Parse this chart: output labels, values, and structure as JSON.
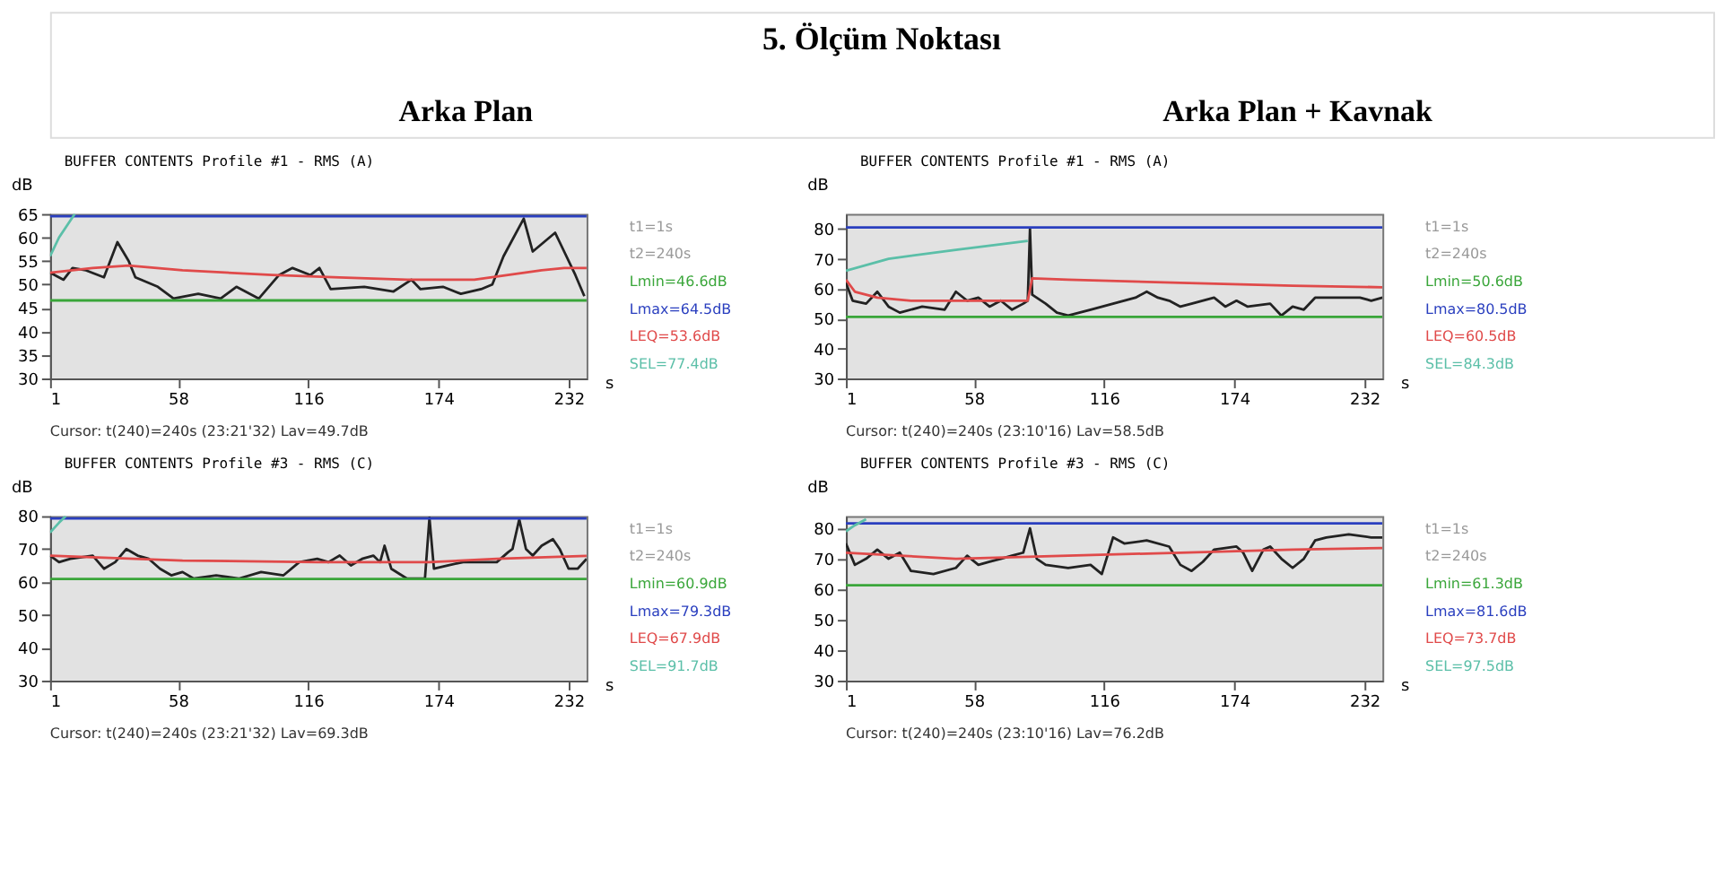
{
  "chart_data": [
    {
      "type": "other",
      "title": "5. Ölçüm Noktası",
      "annotations": [
        "Arka Plan",
        "Arka Plan + Kavnak"
      ]
    },
    {
      "type": "line",
      "title": "BUFFER CONTENTS  Profile #1 - RMS (A)",
      "ylabel": "dB",
      "xlabel": "s",
      "xlim": [
        1,
        240
      ],
      "xticks": [
        1,
        58,
        116,
        174,
        232
      ],
      "ylim": [
        30,
        65
      ],
      "yticks": [
        30,
        35,
        40,
        45,
        50,
        55,
        60,
        65
      ],
      "grid": false,
      "legend": "right",
      "annotations": [
        "t1=1s",
        "t2=240s",
        "Cursor:  t(240)=240s (23:21'32)  Lav=49.7dB"
      ],
      "series": [
        {
          "color": "#222222",
          "x": [
            1,
            7,
            11,
            17,
            25,
            31,
            36,
            39,
            49,
            56,
            67,
            77,
            84,
            94,
            103,
            109,
            117,
            121,
            126,
            141,
            154,
            162,
            166,
            176,
            184,
            193,
            198,
            203,
            212,
            216,
            221,
            226,
            228,
            235,
            239
          ],
          "values": [
            52.5,
            51,
            53.5,
            53,
            51.5,
            59,
            55,
            51.5,
            49.5,
            47,
            48,
            47,
            49.5,
            47,
            52,
            53.5,
            52,
            53.5,
            49,
            49.5,
            48.5,
            51,
            49,
            49.5,
            48,
            49,
            50,
            56,
            64,
            57,
            59,
            61,
            59,
            52,
            47.5
          ]
        },
        {
          "name": "Lmin=46.6dB",
          "color": "#3aa63a",
          "x": [
            1,
            240
          ],
          "values": [
            46.6,
            46.6
          ]
        },
        {
          "name": "Lmax=64.5dB",
          "color": "#2a3fbf",
          "x": [
            1,
            240
          ],
          "values": [
            64.5,
            64.5
          ]
        },
        {
          "name": "LEQ=53.6dB",
          "color": "#e04a4a",
          "x": [
            1,
            20,
            36,
            60,
            100,
            130,
            160,
            190,
            205,
            220,
            230,
            240
          ],
          "values": [
            52.5,
            53.5,
            54,
            53,
            52,
            51.5,
            51,
            51,
            52,
            53,
            53.5,
            53.5
          ]
        },
        {
          "name": "SEL=77.4dB",
          "color": "#5bbfa8",
          "x": [
            1,
            5,
            12
          ],
          "values": [
            56,
            60,
            65
          ]
        }
      ]
    },
    {
      "type": "line",
      "title": "BUFFER CONTENTS  Profile #1 - RMS (A)",
      "ylabel": "dB",
      "xlabel": "s",
      "xlim": [
        1,
        240
      ],
      "xticks": [
        1,
        58,
        116,
        174,
        232
      ],
      "ylim": [
        30,
        85
      ],
      "yticks": [
        30,
        40,
        50,
        60,
        70,
        80
      ],
      "grid": false,
      "legend": "right",
      "annotations": [
        "t1=1s",
        "t2=240s",
        "Cursor:  t(240)=240s (23:10'16)  Lav=58.5dB"
      ],
      "series": [
        {
          "color": "#222222",
          "x": [
            1,
            4,
            10,
            15,
            20,
            25,
            35,
            45,
            50,
            55,
            60,
            65,
            70,
            75,
            80,
            82,
            83,
            84,
            90,
            95,
            100,
            110,
            120,
            130,
            135,
            140,
            145,
            150,
            155,
            165,
            170,
            175,
            180,
            190,
            195,
            200,
            205,
            210,
            215,
            220,
            230,
            235,
            240
          ],
          "values": [
            62,
            56,
            55,
            59,
            54,
            52,
            54,
            53,
            59,
            56,
            57,
            54,
            56,
            53,
            55,
            56,
            80,
            58,
            55,
            52,
            51,
            53,
            55,
            57,
            59,
            57,
            56,
            54,
            55,
            57,
            54,
            56,
            54,
            55,
            51,
            54,
            53,
            57,
            57,
            57,
            57,
            56,
            57
          ]
        },
        {
          "name": "Lmin=50.6dB",
          "color": "#3aa63a",
          "x": [
            1,
            240
          ],
          "values": [
            50.6,
            50.6
          ]
        },
        {
          "name": "Lmax=80.5dB",
          "color": "#2a3fbf",
          "x": [
            1,
            240
          ],
          "values": [
            80.5,
            80.5
          ]
        },
        {
          "name": "LEQ=60.5dB",
          "color": "#e04a4a",
          "x": [
            1,
            5,
            15,
            30,
            50,
            82,
            84,
            100,
            150,
            200,
            240
          ],
          "values": [
            63,
            59,
            57,
            56,
            56,
            56,
            63.5,
            63,
            62,
            61,
            60.5
          ]
        },
        {
          "name": "SEL=84.3dB",
          "color": "#5bbfa8",
          "x": [
            1,
            20,
            50,
            82
          ],
          "values": [
            66,
            70,
            73,
            76
          ]
        }
      ]
    },
    {
      "type": "line",
      "title": "BUFFER CONTENTS  Profile #3 - RMS (C)",
      "ylabel": "dB",
      "xlabel": "s",
      "xlim": [
        1,
        240
      ],
      "xticks": [
        1,
        58,
        116,
        174,
        232
      ],
      "ylim": [
        30,
        80
      ],
      "yticks": [
        30,
        40,
        50,
        60,
        70,
        80
      ],
      "grid": false,
      "legend": "right",
      "annotations": [
        "t1=1s",
        "t2=240s",
        "Cursor:  t(240)=240s (23:21'32)  Lav=69.3dB"
      ],
      "series": [
        {
          "color": "#222222",
          "x": [
            1,
            5,
            10,
            20,
            25,
            30,
            35,
            40,
            45,
            50,
            55,
            60,
            65,
            75,
            85,
            95,
            105,
            112,
            120,
            125,
            130,
            135,
            140,
            145,
            148,
            150,
            153,
            160,
            168,
            170,
            172,
            178,
            185,
            195,
            200,
            205,
            207,
            210,
            213,
            216,
            220,
            225,
            228,
            232,
            236,
            240
          ],
          "values": [
            68,
            66,
            67,
            68,
            64,
            66,
            70,
            68,
            67,
            64,
            62,
            63,
            61,
            62,
            61,
            63,
            62,
            66,
            67,
            66,
            68,
            65,
            67,
            68,
            66,
            71,
            64,
            61,
            61,
            79.5,
            64,
            65,
            66,
            66,
            66,
            69,
            70,
            79,
            70,
            68,
            71,
            73,
            70,
            64,
            64,
            67
          ]
        },
        {
          "name": "Lmin=60.9dB",
          "color": "#3aa63a",
          "x": [
            1,
            240
          ],
          "values": [
            60.9,
            60.9
          ]
        },
        {
          "name": "Lmax=79.3dB",
          "color": "#2a3fbf",
          "x": [
            1,
            240
          ],
          "values": [
            79.3,
            79.3
          ]
        },
        {
          "name": "LEQ=67.9dB",
          "color": "#e04a4a",
          "x": [
            1,
            60,
            120,
            170,
            200,
            240
          ],
          "values": [
            68,
            66.5,
            66,
            66,
            67,
            67.9
          ]
        },
        {
          "name": "SEL=91.7dB",
          "color": "#5bbfa8",
          "x": [
            1,
            5,
            8
          ],
          "values": [
            75,
            78,
            80
          ]
        }
      ]
    },
    {
      "type": "line",
      "title": "BUFFER CONTENTS  Profile #3 - RMS (C)",
      "ylabel": "dB",
      "xlabel": "s",
      "xlim": [
        1,
        240
      ],
      "xticks": [
        1,
        58,
        116,
        174,
        232
      ],
      "ylim": [
        30,
        84
      ],
      "yticks": [
        30,
        40,
        50,
        60,
        70,
        80
      ],
      "grid": false,
      "legend": "right",
      "annotations": [
        "t1=1s",
        "t2=240s",
        "Cursor:  t(240)=240s (23:10'16)  Lav=76.2dB"
      ],
      "series": [
        {
          "color": "#222222",
          "x": [
            1,
            5,
            10,
            15,
            20,
            25,
            30,
            40,
            50,
            55,
            60,
            65,
            70,
            75,
            80,
            83,
            86,
            90,
            100,
            110,
            115,
            120,
            125,
            135,
            145,
            150,
            155,
            160,
            165,
            175,
            178,
            182,
            187,
            190,
            195,
            200,
            205,
            210,
            215,
            225,
            235,
            240
          ],
          "values": [
            75,
            68,
            70,
            73,
            70,
            72,
            66,
            65,
            67,
            71,
            68,
            69,
            70,
            71,
            72,
            80,
            70,
            68,
            67,
            68,
            65,
            77,
            75,
            76,
            74,
            68,
            66,
            69,
            73,
            74,
            72,
            66,
            73,
            74,
            70,
            67,
            70,
            76,
            77,
            78,
            77,
            77
          ]
        },
        {
          "name": "Lmin=61.3dB",
          "color": "#3aa63a",
          "x": [
            1,
            240
          ],
          "values": [
            61.3,
            61.3
          ]
        },
        {
          "name": "Lmax=81.6dB",
          "color": "#2a3fbf",
          "x": [
            1,
            240
          ],
          "values": [
            81.6,
            81.6
          ]
        },
        {
          "name": "LEQ=73.7dB",
          "color": "#e04a4a",
          "x": [
            1,
            50,
            100,
            150,
            200,
            240
          ],
          "values": [
            72,
            70,
            71,
            72,
            73,
            73.5
          ]
        },
        {
          "name": "SEL=97.5dB",
          "color": "#5bbfa8",
          "x": [
            1,
            5,
            10
          ],
          "values": [
            79,
            81,
            83
          ]
        }
      ]
    }
  ]
}
